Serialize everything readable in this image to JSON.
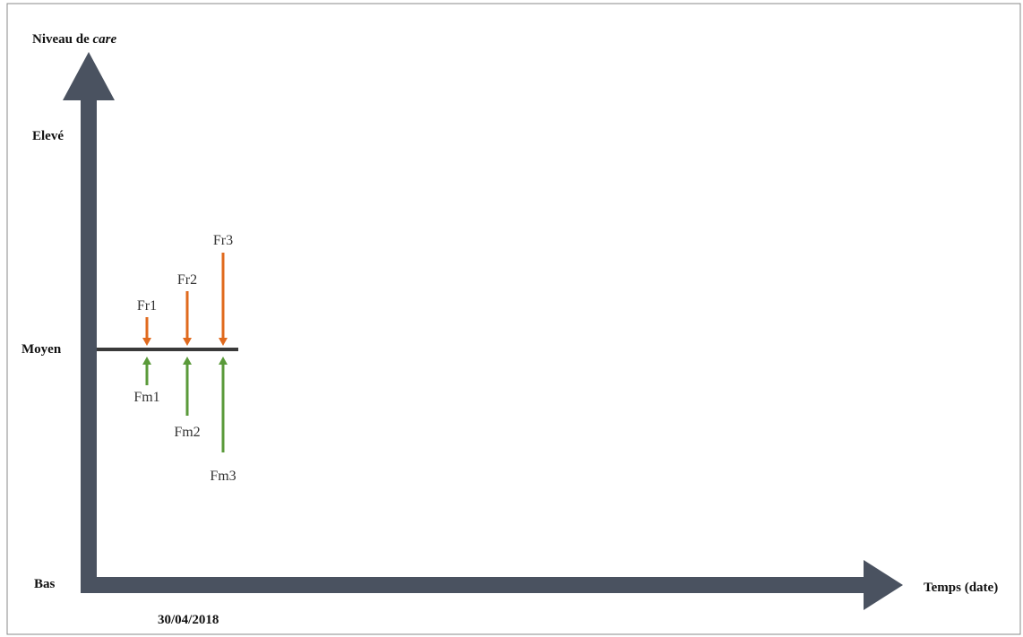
{
  "y_axis": {
    "title_prefix": "Niveau de ",
    "title_italic": "care",
    "levels": {
      "high": "Elevé",
      "medium": "Moyen",
      "low": "Bas"
    }
  },
  "x_axis": {
    "title": "Temps (date)",
    "date_label": "30/04/2018"
  },
  "forces": {
    "fr": [
      "Fr1",
      "Fr2",
      "Fr3"
    ],
    "fm": [
      "Fm1",
      "Fm2",
      "Fm3"
    ]
  },
  "colors": {
    "axis": "#4a5260",
    "frame": "#888888",
    "baseline": "#3a3a3a",
    "fr_arrow": "#e06a1e",
    "fm_arrow": "#5a9a3a"
  }
}
